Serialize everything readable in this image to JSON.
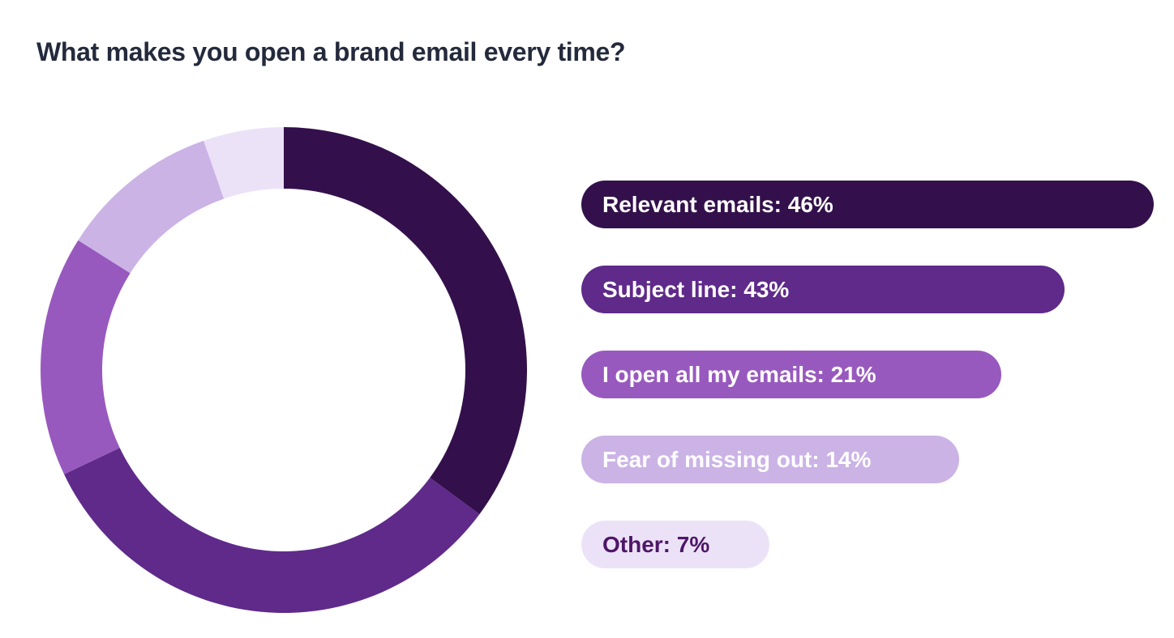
{
  "page": {
    "background": "#ffffff"
  },
  "title": "What makes you open a brand email every time?",
  "title_color": "#242a3c",
  "chart_data": {
    "type": "pie",
    "variant": "donut",
    "title": "What makes you open a brand email every time?",
    "legend_position": "right",
    "direction": "clockwise",
    "start_angle_deg": 0,
    "normalized_total": 131,
    "grid": false,
    "categories": [
      "Relevant emails",
      "Subject line",
      "I open all my emails",
      "Fear of missing out",
      "Other"
    ],
    "values": [
      46,
      43,
      21,
      14,
      7
    ],
    "items": [
      {
        "label": "Relevant emails",
        "value": 46,
        "display": "Relevant emails: 46%",
        "color": "#33104b",
        "text_color": "#ffffff",
        "bar_width_pct": 100
      },
      {
        "label": "Subject line",
        "value": 43,
        "display": "Subject line: 43%",
        "color": "#5f2a8a",
        "text_color": "#ffffff",
        "bar_width_pct": 84.4
      },
      {
        "label": "I open all my emails",
        "value": 21,
        "display": "I open all my emails: 21%",
        "color": "#9859be",
        "text_color": "#ffffff",
        "bar_width_pct": 73.4
      },
      {
        "label": "Fear of missing out",
        "value": 14,
        "display": "Fear of missing out: 14%",
        "color": "#cbb3e6",
        "text_color": "#ffffff",
        "bar_width_pct": 66.0
      },
      {
        "label": "Other",
        "value": 7,
        "display": "Other: 7%",
        "color": "#ece2f8",
        "text_color": "#4e1668",
        "bar_width_pct": 32.9
      }
    ],
    "donut_geometry": {
      "outer_radius": 300,
      "inner_radius": 224
    }
  }
}
